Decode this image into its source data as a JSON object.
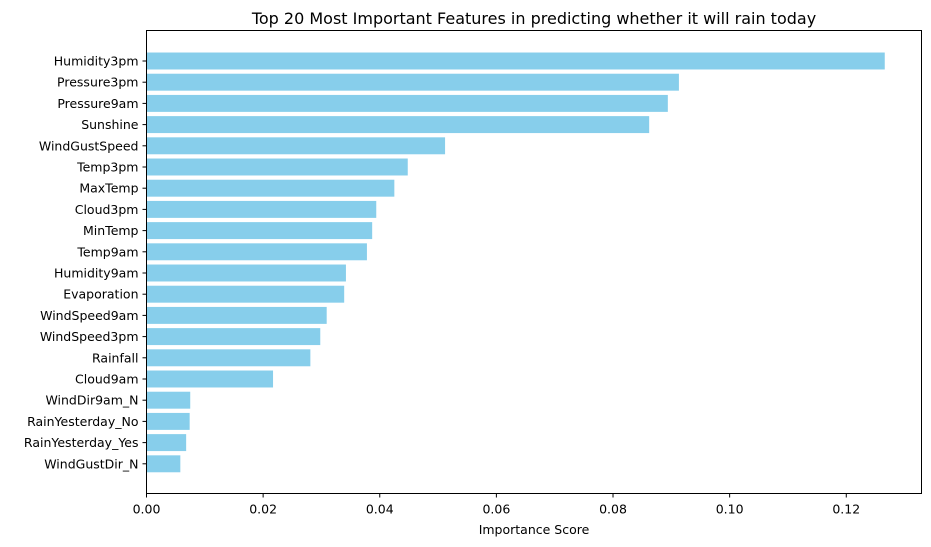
{
  "chart_data": {
    "type": "bar",
    "orientation": "horizontal",
    "title": "Top 20 Most Important Features in predicting whether it will rain today",
    "xlabel": "Importance Score",
    "ylabel": "",
    "xlim": [
      0,
      0.1329
    ],
    "xticks": [
      0.0,
      0.02,
      0.04,
      0.06,
      0.08,
      0.1,
      0.12
    ],
    "xtick_labels": [
      "0.00",
      "0.02",
      "0.04",
      "0.06",
      "0.08",
      "0.10",
      "0.12"
    ],
    "bar_color": "#87ceeb",
    "grid": false,
    "categories": [
      "Humidity3pm",
      "Pressure3pm",
      "Pressure9am",
      "Sunshine",
      "WindGustSpeed",
      "Temp3pm",
      "MaxTemp",
      "Cloud3pm",
      "MinTemp",
      "Temp9am",
      "Humidity9am",
      "Evaporation",
      "WindSpeed9am",
      "WindSpeed3pm",
      "Rainfall",
      "Cloud9am",
      "WindDir9am_N",
      "RainYesterday_No",
      "RainYesterday_Yes",
      "WindGustDir_N"
    ],
    "values": [
      0.1266,
      0.0913,
      0.0894,
      0.0862,
      0.0512,
      0.0448,
      0.0425,
      0.0394,
      0.0387,
      0.0378,
      0.0342,
      0.0339,
      0.0309,
      0.0298,
      0.0281,
      0.0217,
      0.0075,
      0.0074,
      0.0068,
      0.0058
    ]
  }
}
